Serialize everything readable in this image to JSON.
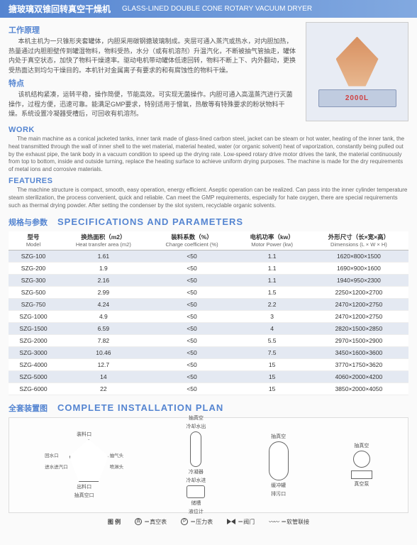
{
  "header": {
    "cn": "搪玻璃双锥回转真空干燥机",
    "en": "GLASS-LINED DOUBLE CONE ROTARY VACUUM DRYER"
  },
  "machine_label": "2000L",
  "work_cn_h": "工作原理",
  "work_cn_body": "本机主机为一只锥形夹套罐体，内胆采用碳钢搪玻璃制成。夹层可通入蒸汽或热水，对内胆加热，热量通过内胆胆壁传到罐湿物料，物料受热，水分（或有机溶剂）升温汽化，不断被抽气管抽走，罐体内处于真空状态，加快了物料干燥速率。驱动电机带动罐体低速回转，物料不断上下、内外翻动，更换受热面达到均匀干燥目的。本机针对金属离子有要求的和有腐蚀性的物料干燥。",
  "feat_cn_h": "特点",
  "feat_cn_body": "该机结构紧凑，运转平稳，操作简便，节能高效。可实现无菌操作。内胆可通入高温蒸汽进行灭菌操作，过程方便，迅速可靠。能满足GMP要求，特别适用于憎氧，热敏等有特殊要求的粉状物料干燥。系统设置冷凝器受槽后，可回收有机溶剂。",
  "work_en_h": "WORK",
  "work_en_body": "The main machine as a conical jacketed tanks, inner tank made of glass-lined carbon steel, jacket can be steam or hot water, heating of the inner tank, the heat transmitted through the wall of inner shell to the wet material, material heated, water (or organic solvent) heat of vaporization, constantly being pulled out by the exhaust pipe, the tank body in a vacuum condition to speed up the drying rate. Low-speed rotary drive motor drives the tank, the material continuously from top to bottom, inside and outside turning, replace the heating surface to achieve uniform drying purposes. The machine is made for the dry requirements of metal ions and corrosive materials.",
  "feat_en_h": "FEATURES",
  "feat_en_body": "The machine structure is compact, smooth, easy operation, energy efficient. Aseptic operation can be realized. Can pass into the inner cylinder temperature steam sterilization, the process convenient, quick and reliable. Can meet the GMP requirements, especially for hate oxygen, there are special requirements such as thermal drying powder. After setting the condenser by the slot system, recyclable organic solvents.",
  "spec_cn_h": "规格与参数",
  "spec_en_h": "SPECIFICATIONS AND PARAMETERS",
  "table": {
    "columns": [
      {
        "cn": "型号",
        "en": "Model"
      },
      {
        "cn": "换热面积（m2）",
        "en": "Heat transfer area (m2)"
      },
      {
        "cn": "装料系数（%）",
        "en": "Charge coefficient (%)"
      },
      {
        "cn": "电机功率（kw）",
        "en": "Motor Power (kw)"
      },
      {
        "cn": "外形尺寸（长×宽×高）",
        "en": "Dimensions (L × W × H)"
      }
    ],
    "rows": [
      [
        "SZG-100",
        "1.61",
        "<50",
        "1.1",
        "1620×800×1500"
      ],
      [
        "SZG-200",
        "1.9",
        "<50",
        "1.1",
        "1690×900×1600"
      ],
      [
        "SZG-300",
        "2.16",
        "<50",
        "1.1",
        "1940×950×2300"
      ],
      [
        "SZG-500",
        "2.99",
        "<50",
        "1.5",
        "2250×1200×2700"
      ],
      [
        "SZG-750",
        "4.24",
        "<50",
        "2.2",
        "2470×1200×2750"
      ],
      [
        "SZG-1000",
        "4.9",
        "<50",
        "3",
        "2470×1200×2750"
      ],
      [
        "SZG-1500",
        "6.59",
        "<50",
        "4",
        "2820×1500×2850"
      ],
      [
        "SZG-2000",
        "7.82",
        "<50",
        "5.5",
        "2970×1500×2900"
      ],
      [
        "SZG-3000",
        "10.46",
        "<50",
        "7.5",
        "3450×1600×3600"
      ],
      [
        "SZG-4000",
        "12.7",
        "<50",
        "15",
        "3770×1750×3620"
      ],
      [
        "SZG-5000",
        "14",
        "<50",
        "15",
        "4060×2000×4200"
      ],
      [
        "SZG-6000",
        "22",
        "<50",
        "15",
        "3850×2000×4050"
      ]
    ]
  },
  "install_cn_h": "全套装置图",
  "install_en_h": "COMPLETE INSTALLATION PLAN",
  "plan_labels": {
    "feed": "装料口",
    "return": "回水口",
    "exhaust": "抽气头",
    "inlet": "进水进汽口",
    "spray": "喷淋头",
    "discharge": "出料口",
    "vac_out": "抽真空口",
    "cool_out": "冷却水出",
    "condenser": "冷凝器",
    "cool_in": "冷却水进",
    "tank": "储槽",
    "level": "液位计",
    "vac": "抽真空",
    "buffer": "缓冲罐",
    "drain": "排污口",
    "pump": "真空泵"
  },
  "legend": {
    "label": "图 例",
    "vac_gauge": "＝真空表",
    "press_gauge": "＝压力表",
    "valve": "＝阀门",
    "hose": "＝软管联接"
  },
  "colors": {
    "accent": "#5585d1",
    "row_alt": "#e4e9f2"
  }
}
